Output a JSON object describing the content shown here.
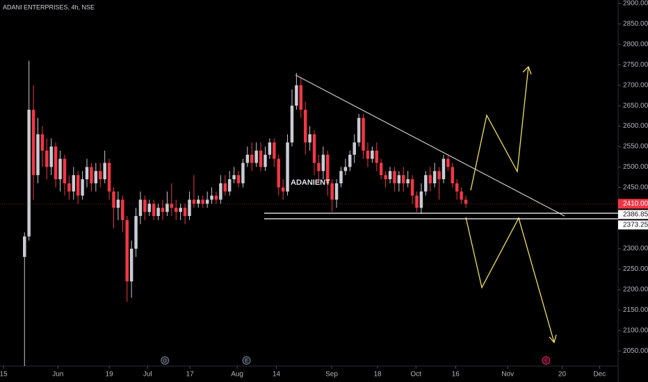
{
  "chart_data": {
    "type": "candlestick",
    "title": "ADANI ENTERPRISES, 4h, NSE",
    "symbol": "ADANIENT",
    "up_color": "#c9ccd4",
    "down_color": "#f23645",
    "xlim": [
      -5.5,
      133
    ],
    "xticks": [
      {
        "value": -4.7,
        "label": "15"
      },
      {
        "value": 7.5,
        "label": "Jun"
      },
      {
        "value": 19.0,
        "label": "19"
      },
      {
        "value": 27.6,
        "label": "Jul"
      },
      {
        "value": 37.1,
        "label": "17"
      },
      {
        "value": 47.7,
        "label": "Aug"
      },
      {
        "value": 56.5,
        "label": "14"
      },
      {
        "value": 68.9,
        "label": "Sep"
      },
      {
        "value": 79.2,
        "label": "18"
      },
      {
        "value": 87.8,
        "label": "Oct"
      },
      {
        "value": 96.7,
        "label": "16"
      },
      {
        "value": 108.4,
        "label": "Nov"
      },
      {
        "value": 120.6,
        "label": "20"
      },
      {
        "value": 129.0,
        "label": "Dec"
      }
    ],
    "ylim": [
      2013,
      2908.5
    ],
    "yticks": [
      {
        "value": 2900,
        "label": "2900.00"
      },
      {
        "value": 2850,
        "label": "2850.00"
      },
      {
        "value": 2800,
        "label": "2800.00"
      },
      {
        "value": 2750,
        "label": "2750.00"
      },
      {
        "value": 2700,
        "label": "2700.00"
      },
      {
        "value": 2650,
        "label": "2650.00"
      },
      {
        "value": 2600,
        "label": "2600.00"
      },
      {
        "value": 2550,
        "label": "2550.00"
      },
      {
        "value": 2500,
        "label": "2500.00"
      },
      {
        "value": 2450,
        "label": "2450.00"
      },
      {
        "value": 2300,
        "label": "2300.00"
      },
      {
        "value": 2250,
        "label": "2250.00"
      },
      {
        "value": 2200,
        "label": "2200.00"
      },
      {
        "value": 2150,
        "label": "2150.00"
      },
      {
        "value": 2100,
        "label": "2100.00"
      },
      {
        "value": 2050,
        "label": "2050.00"
      }
    ],
    "last_price": {
      "value": 2410,
      "label": "2410.00"
    },
    "levels": [
      {
        "value": 2386.85,
        "label": "2386.85"
      },
      {
        "value": 2373.25,
        "label": "2373.25"
      }
    ],
    "events": [
      {
        "x": 31.5,
        "label": "D"
      },
      {
        "x": 49.8,
        "label": "E"
      },
      {
        "x": 117,
        "label": "E"
      }
    ],
    "open": [
      2280,
      2330,
      2640,
      2480,
      2580,
      2540,
      2500,
      2550,
      2470,
      2520,
      2460,
      2440,
      2480,
      2430,
      2470,
      2500,
      2460,
      2490,
      2470,
      2510,
      2440,
      2400,
      2420,
      2370,
      2220,
      2300,
      2380,
      2420,
      2390,
      2410,
      2380,
      2400,
      2390,
      2410,
      2400,
      2390,
      2400,
      2380,
      2420,
      2410,
      2420,
      2410,
      2420,
      2430,
      2420,
      2460,
      2440,
      2470,
      2480,
      2460,
      2510,
      2530,
      2510,
      2540,
      2500,
      2530,
      2560,
      2520,
      2450,
      2440,
      2560,
      2650,
      2700,
      2640,
      2560,
      2580,
      2510,
      2490,
      2530,
      2460,
      2420,
      2460,
      2490,
      2500,
      2530,
      2560,
      2620,
      2540,
      2520,
      2540,
      2510,
      2480,
      2470,
      2490,
      2460,
      2480,
      2460,
      2470,
      2430,
      2400,
      2440,
      2480,
      2460,
      2490,
      2470,
      2520,
      2500,
      2460,
      2440,
      2420
    ],
    "high": [
      2340,
      2760,
      2700,
      2620,
      2600,
      2570,
      2570,
      2560,
      2540,
      2530,
      2480,
      2500,
      2490,
      2490,
      2520,
      2510,
      2510,
      2510,
      2540,
      2520,
      2450,
      2440,
      2430,
      2380,
      2320,
      2400,
      2440,
      2430,
      2420,
      2420,
      2410,
      2420,
      2440,
      2460,
      2420,
      2410,
      2410,
      2440,
      2480,
      2430,
      2430,
      2440,
      2450,
      2440,
      2480,
      2480,
      2490,
      2500,
      2490,
      2520,
      2550,
      2560,
      2560,
      2560,
      2550,
      2570,
      2570,
      2530,
      2470,
      2580,
      2690,
      2730,
      2720,
      2660,
      2600,
      2590,
      2530,
      2550,
      2540,
      2470,
      2470,
      2500,
      2520,
      2540,
      2580,
      2630,
      2630,
      2560,
      2550,
      2560,
      2520,
      2490,
      2500,
      2500,
      2490,
      2500,
      2490,
      2480,
      2440,
      2460,
      2490,
      2500,
      2510,
      2500,
      2530,
      2530,
      2510,
      2470,
      2450,
      2430
    ],
    "low": [
      2013,
      2320,
      2420,
      2460,
      2500,
      2470,
      2480,
      2450,
      2440,
      2430,
      2420,
      2420,
      2410,
      2420,
      2450,
      2440,
      2440,
      2450,
      2460,
      2420,
      2350,
      2370,
      2340,
      2170,
      2180,
      2280,
      2360,
      2370,
      2380,
      2370,
      2370,
      2370,
      2380,
      2380,
      2370,
      2370,
      2360,
      2370,
      2400,
      2400,
      2400,
      2400,
      2410,
      2410,
      2410,
      2430,
      2430,
      2460,
      2450,
      2450,
      2500,
      2490,
      2500,
      2490,
      2490,
      2520,
      2500,
      2430,
      2420,
      2430,
      2550,
      2640,
      2620,
      2530,
      2540,
      2480,
      2460,
      2470,
      2430,
      2390,
      2400,
      2450,
      2480,
      2490,
      2510,
      2550,
      2520,
      2500,
      2510,
      2490,
      2470,
      2450,
      2460,
      2440,
      2440,
      2440,
      2450,
      2410,
      2390,
      2385,
      2430,
      2440,
      2450,
      2420,
      2460,
      2490,
      2450,
      2420,
      2410,
      2400
    ],
    "close": [
      2330,
      2640,
      2480,
      2580,
      2540,
      2500,
      2550,
      2470,
      2520,
      2460,
      2440,
      2480,
      2430,
      2470,
      2500,
      2460,
      2490,
      2470,
      2510,
      2440,
      2400,
      2420,
      2370,
      2220,
      2300,
      2380,
      2420,
      2390,
      2410,
      2380,
      2400,
      2390,
      2410,
      2400,
      2390,
      2400,
      2380,
      2420,
      2410,
      2420,
      2410,
      2420,
      2430,
      2420,
      2460,
      2440,
      2470,
      2480,
      2460,
      2510,
      2530,
      2510,
      2540,
      2500,
      2530,
      2560,
      2520,
      2450,
      2440,
      2560,
      2650,
      2700,
      2640,
      2560,
      2580,
      2510,
      2490,
      2530,
      2460,
      2420,
      2460,
      2490,
      2500,
      2530,
      2560,
      2620,
      2540,
      2520,
      2540,
      2510,
      2480,
      2470,
      2490,
      2460,
      2480,
      2460,
      2470,
      2430,
      2400,
      2440,
      2480,
      2460,
      2490,
      2470,
      2520,
      2500,
      2460,
      2440,
      2420,
      2410
    ]
  }
}
